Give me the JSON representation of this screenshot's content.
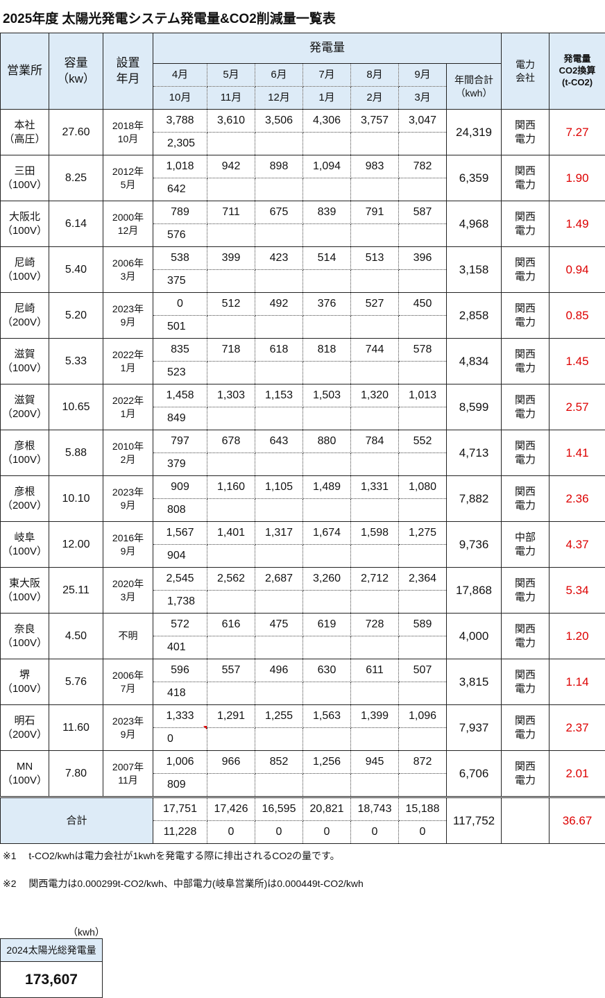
{
  "title": "2025年度 太陽光発電システム発電量&CO2削減量一覧表",
  "header": {
    "office": "営業所",
    "capacity": [
      "容量",
      "（kw）"
    ],
    "install": [
      "設置",
      "年月"
    ],
    "generation": "発電量",
    "months_row1": [
      "4月",
      "5月",
      "6月",
      "7月",
      "8月",
      "9月"
    ],
    "months_row2": [
      "10月",
      "11月",
      "12月",
      "1月",
      "2月",
      "3月"
    ],
    "annual": [
      "年間合計",
      "（kwh）"
    ],
    "company": [
      "電力",
      "会社"
    ],
    "co2": [
      "発電量",
      "CO2換算",
      "(t-CO2)"
    ]
  },
  "rows": [
    {
      "office": [
        "本社",
        "（高圧）"
      ],
      "capacity": "27.60",
      "install": [
        "2018年",
        "10月"
      ],
      "m1": [
        "3,788",
        "3,610",
        "3,506",
        "4,306",
        "3,757",
        "3,047"
      ],
      "m2": [
        "2,305",
        "",
        "",
        "",
        "",
        ""
      ],
      "annual": "24,319",
      "company": [
        "関西",
        "電力"
      ],
      "co2": "7.27"
    },
    {
      "office": [
        "三田",
        "（100V）"
      ],
      "capacity": "8.25",
      "install": [
        "2012年",
        "5月"
      ],
      "m1": [
        "1,018",
        "942",
        "898",
        "1,094",
        "983",
        "782"
      ],
      "m2": [
        "642",
        "",
        "",
        "",
        "",
        ""
      ],
      "annual": "6,359",
      "company": [
        "関西",
        "電力"
      ],
      "co2": "1.90"
    },
    {
      "office": [
        "大阪北",
        "（100V）"
      ],
      "capacity": "6.14",
      "install": [
        "2000年",
        "12月"
      ],
      "m1": [
        "789",
        "711",
        "675",
        "839",
        "791",
        "587"
      ],
      "m2": [
        "576",
        "",
        "",
        "",
        "",
        ""
      ],
      "annual": "4,968",
      "company": [
        "関西",
        "電力"
      ],
      "co2": "1.49"
    },
    {
      "office": [
        "尼崎",
        "（100V）"
      ],
      "capacity": "5.40",
      "install": [
        "2006年",
        "3月"
      ],
      "m1": [
        "538",
        "399",
        "423",
        "514",
        "513",
        "396"
      ],
      "m2": [
        "375",
        "",
        "",
        "",
        "",
        ""
      ],
      "annual": "3,158",
      "company": [
        "関西",
        "電力"
      ],
      "co2": "0.94"
    },
    {
      "office": [
        "尼崎",
        "（200V）"
      ],
      "capacity": "5.20",
      "install": [
        "2023年",
        "9月"
      ],
      "m1": [
        "0",
        "512",
        "492",
        "376",
        "527",
        "450"
      ],
      "m2": [
        "501",
        "",
        "",
        "",
        "",
        ""
      ],
      "annual": "2,858",
      "company": [
        "関西",
        "電力"
      ],
      "co2": "0.85"
    },
    {
      "office": [
        "滋賀",
        "（100V）"
      ],
      "capacity": "5.33",
      "install": [
        "2022年",
        "1月"
      ],
      "m1": [
        "835",
        "718",
        "618",
        "818",
        "744",
        "578"
      ],
      "m2": [
        "523",
        "",
        "",
        "",
        "",
        ""
      ],
      "annual": "4,834",
      "company": [
        "関西",
        "電力"
      ],
      "co2": "1.45"
    },
    {
      "office": [
        "滋賀",
        "（200V）"
      ],
      "capacity": "10.65",
      "install": [
        "2022年",
        "1月"
      ],
      "m1": [
        "1,458",
        "1,303",
        "1,153",
        "1,503",
        "1,320",
        "1,013"
      ],
      "m2": [
        "849",
        "",
        "",
        "",
        "",
        ""
      ],
      "annual": "8,599",
      "company": [
        "関西",
        "電力"
      ],
      "co2": "2.57"
    },
    {
      "office": [
        "彦根",
        "（100V）"
      ],
      "capacity": "5.88",
      "install": [
        "2010年",
        "2月"
      ],
      "m1": [
        "797",
        "678",
        "643",
        "880",
        "784",
        "552"
      ],
      "m2": [
        "379",
        "",
        "",
        "",
        "",
        ""
      ],
      "annual": "4,713",
      "company": [
        "関西",
        "電力"
      ],
      "co2": "1.41"
    },
    {
      "office": [
        "彦根",
        "（200V）"
      ],
      "capacity": "10.10",
      "install": [
        "2023年",
        "9月"
      ],
      "m1": [
        "909",
        "1,160",
        "1,105",
        "1,489",
        "1,331",
        "1,080"
      ],
      "m2": [
        "808",
        "",
        "",
        "",
        "",
        ""
      ],
      "annual": "7,882",
      "company": [
        "関西",
        "電力"
      ],
      "co2": "2.36"
    },
    {
      "office": [
        "岐阜",
        "（100V）"
      ],
      "capacity": "12.00",
      "install": [
        "2016年",
        "9月"
      ],
      "m1": [
        "1,567",
        "1,401",
        "1,317",
        "1,674",
        "1,598",
        "1,275"
      ],
      "m2": [
        "904",
        "",
        "",
        "",
        "",
        ""
      ],
      "annual": "9,736",
      "company": [
        "中部",
        "電力"
      ],
      "co2": "4.37"
    },
    {
      "office": [
        "東大阪",
        "（100V）"
      ],
      "capacity": "25.11",
      "install": [
        "2020年",
        "3月"
      ],
      "m1": [
        "2,545",
        "2,562",
        "2,687",
        "3,260",
        "2,712",
        "2,364"
      ],
      "m2": [
        "1,738",
        "",
        "",
        "",
        "",
        ""
      ],
      "annual": "17,868",
      "company": [
        "関西",
        "電力"
      ],
      "co2": "5.34"
    },
    {
      "office": [
        "奈良",
        "（100V）"
      ],
      "capacity": "4.50",
      "install": [
        "不明"
      ],
      "m1": [
        "572",
        "616",
        "475",
        "619",
        "728",
        "589"
      ],
      "m2": [
        "401",
        "",
        "",
        "",
        "",
        ""
      ],
      "annual": "4,000",
      "company": [
        "関西",
        "電力"
      ],
      "co2": "1.20"
    },
    {
      "office": [
        "堺",
        "（100V）"
      ],
      "capacity": "5.76",
      "install": [
        "2006年",
        "7月"
      ],
      "m1": [
        "596",
        "557",
        "496",
        "630",
        "611",
        "507"
      ],
      "m2": [
        "418",
        "",
        "",
        "",
        "",
        ""
      ],
      "annual": "3,815",
      "company": [
        "関西",
        "電力"
      ],
      "co2": "1.14"
    },
    {
      "office": [
        "明石",
        "（200V）"
      ],
      "capacity": "11.60",
      "install": [
        "2023年",
        "9月"
      ],
      "m1": [
        "1,333",
        "1,291",
        "1,255",
        "1,563",
        "1,399",
        "1,096"
      ],
      "m2": [
        "0",
        "",
        "",
        "",
        "",
        ""
      ],
      "annual": "7,937",
      "company": [
        "関西",
        "電力"
      ],
      "co2": "2.37"
    },
    {
      "office": [
        "MN",
        "（100V）"
      ],
      "capacity": "7.80",
      "install": [
        "2007年",
        "11月"
      ],
      "m1": [
        "1,006",
        "966",
        "852",
        "1,256",
        "945",
        "872"
      ],
      "m2": [
        "809",
        "",
        "",
        "",
        "",
        ""
      ],
      "annual": "6,706",
      "company": [
        "関西",
        "電力"
      ],
      "co2": "2.01"
    }
  ],
  "total": {
    "label": "合計",
    "m1": [
      "17,751",
      "17,426",
      "16,595",
      "20,821",
      "18,743",
      "15,188"
    ],
    "m2": [
      "11,228",
      "0",
      "0",
      "0",
      "0",
      "0"
    ],
    "annual": "117,752",
    "company": "",
    "co2": "36.67"
  },
  "notes": [
    "※1　 t-CO2/kwhは電力会社が1kwhを発電する際に排出されるCO2の量です。",
    "※2　 関西電力は0.000299t-CO2/kwh、中部電力(岐阜営業所)は0.000449t-CO2/kwh"
  ],
  "summary_box": {
    "unit": "（kwh）",
    "label": "2024太陽光総発電量",
    "value": "173,607"
  },
  "colors": {
    "header_bg": "#ddebf7",
    "co2_text": "#dd0000"
  }
}
